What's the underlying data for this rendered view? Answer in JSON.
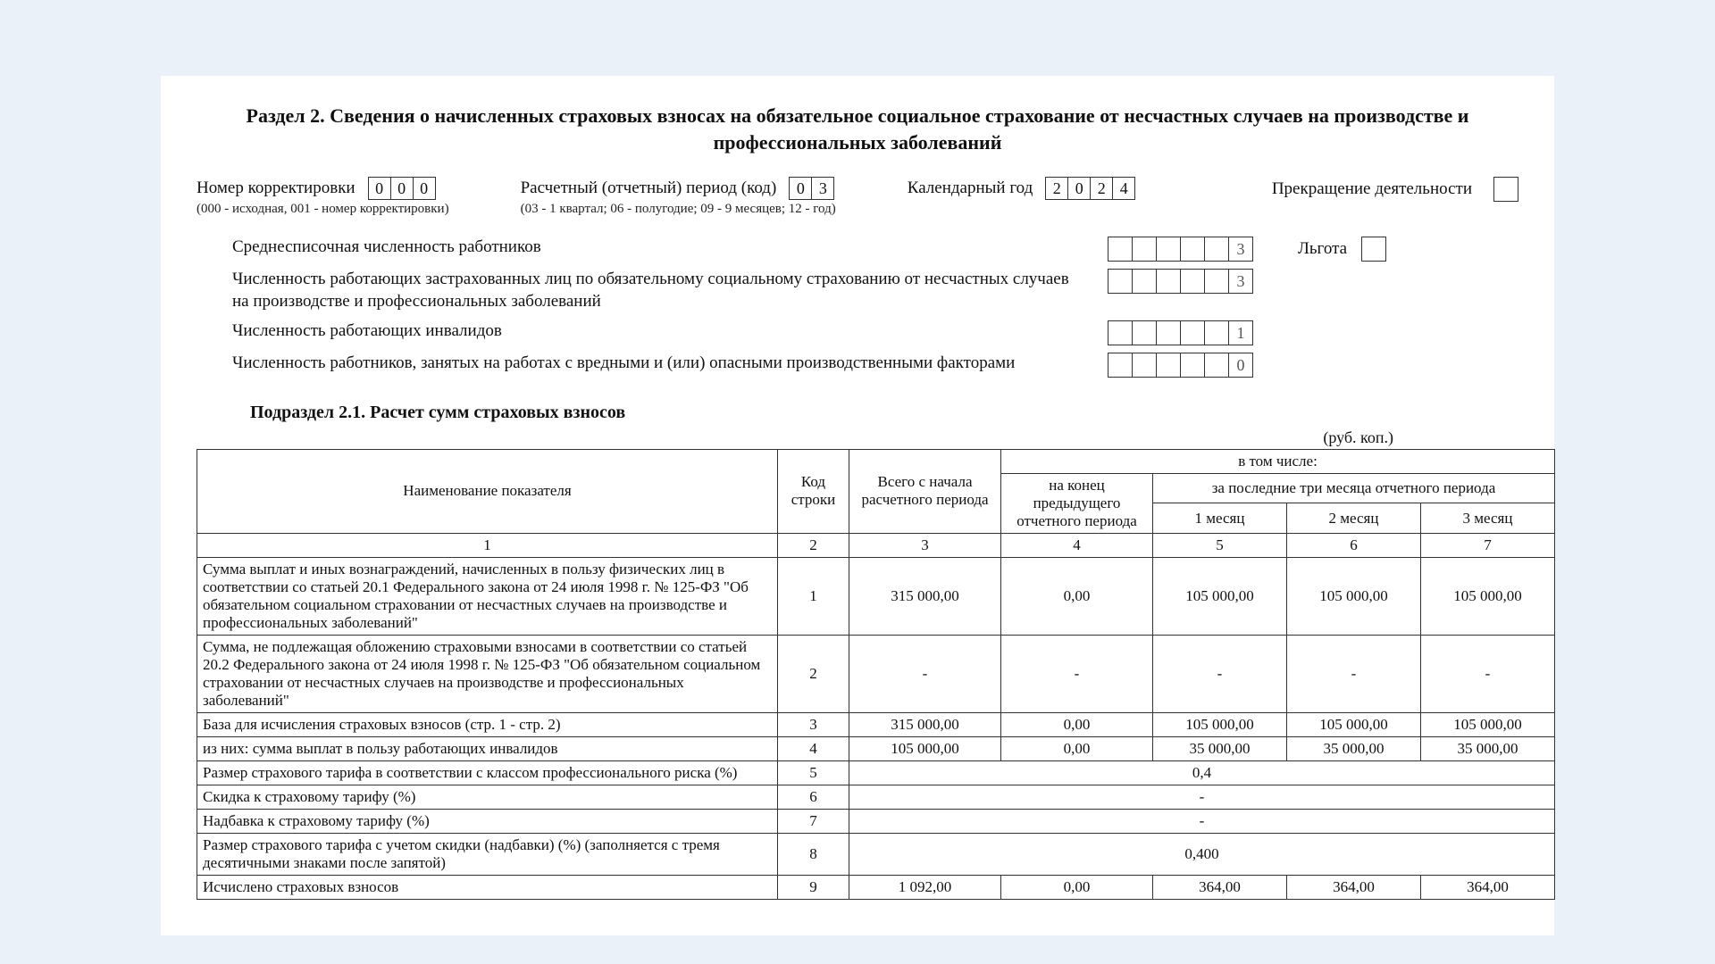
{
  "colors": {
    "page_bg": "#eaf1f9",
    "paper_bg": "#ffffff",
    "text": "#111111",
    "border": "#333333",
    "muted": "#555555"
  },
  "fonts": {
    "family": "Times New Roman",
    "title_size_pt": 16,
    "body_size_pt": 14,
    "table_size_pt": 12
  },
  "title": "Раздел 2. Сведения о начисленных страховых взносах на обязательное социальное страхование от несчастных случаев на производстве и профессиональных заболеваний",
  "header": {
    "correction": {
      "label": "Номер корректировки",
      "digits": [
        "0",
        "0",
        "0"
      ],
      "note": "(000 - исходная, 001 - номер корректировки)"
    },
    "period": {
      "label": "Расчетный (отчетный) период (код)",
      "digits": [
        "0",
        "3"
      ],
      "note": "(03 - 1 квартал; 06 - полугодие; 09 - 9 месяцев; 12 - год)"
    },
    "year": {
      "label": "Календарный год",
      "digits": [
        "2",
        "0",
        "2",
        "4"
      ]
    },
    "termination_label": "Прекращение деятельности",
    "benefit_label": "Льгота"
  },
  "stats": {
    "rows": [
      {
        "label": "Среднесписочная численность работников",
        "digits": [
          "",
          "",
          "",
          "",
          "",
          "3"
        ],
        "show_benefit": true
      },
      {
        "label": "Численность работающих застрахованных лиц по обязательному социальному страхованию от несчастных случаев на производстве и профессиональных заболеваний",
        "digits": [
          "",
          "",
          "",
          "",
          "",
          "3"
        ]
      },
      {
        "label": "Численность работающих инвалидов",
        "digits": [
          "",
          "",
          "",
          "",
          "",
          "1"
        ]
      },
      {
        "label": "Численность работников, занятых на работах с вредными и (или) опасными производственными факторами",
        "digits": [
          "",
          "",
          "",
          "",
          "",
          "0"
        ]
      }
    ]
  },
  "subsection_title": "Подраздел 2.1. Расчет сумм страховых взносов",
  "rub_note": "(руб. коп.)",
  "table": {
    "headers": {
      "name": "Наименование показателя",
      "code": "Код строки",
      "total": "Всего с начала расчетного периода",
      "including": "в том числе:",
      "prev_end": "на конец предыдущего отчетного периода",
      "last3": "за последние три месяца отчетного периода",
      "m1": "1 месяц",
      "m2": "2 месяц",
      "m3": "3 месяц"
    },
    "col_numbers": [
      "1",
      "2",
      "3",
      "4",
      "5",
      "6",
      "7"
    ],
    "rows": [
      {
        "name": "Сумма выплат и иных вознаграждений, начисленных в пользу физических лиц в соответствии со статьей 20.1 Федерального закона от 24 июля 1998 г. № 125-ФЗ \"Об обязательном социальном страховании от несчастных случаев на производстве и профессиональных заболеваний\"",
        "code": "1",
        "cells": [
          "315 000,00",
          "0,00",
          "105 000,00",
          "105 000,00",
          "105 000,00"
        ]
      },
      {
        "name": "Сумма, не подлежащая обложению страховыми взносами в соответствии со статьей 20.2 Федерального закона от 24 июля 1998 г. № 125-ФЗ \"Об обязательном социальном страховании от несчастных случаев на производстве и профессиональных заболеваний\"",
        "code": "2",
        "cells": [
          "-",
          "-",
          "-",
          "-",
          "-"
        ]
      },
      {
        "name": "База для исчисления страховых взносов (стр. 1 - стр. 2)",
        "code": "3",
        "cells": [
          "315 000,00",
          "0,00",
          "105 000,00",
          "105 000,00",
          "105 000,00"
        ]
      },
      {
        "name": "из них: сумма выплат в пользу работающих инвалидов",
        "code": "4",
        "cells": [
          "105 000,00",
          "0,00",
          "35 000,00",
          "35 000,00",
          "35 000,00"
        ]
      },
      {
        "name": "Размер страхового тарифа в соответствии с классом профессионального риска (%)",
        "code": "5",
        "merged": "0,4"
      },
      {
        "name": "Скидка к страховому тарифу (%)",
        "code": "6",
        "merged": "-"
      },
      {
        "name": "Надбавка к страховому тарифу (%)",
        "code": "7",
        "merged": "-"
      },
      {
        "name": "Размер страхового тарифа с учетом скидки (надбавки) (%) (заполняется с тремя десятичными знаками после запятой)",
        "code": "8",
        "merged": "0,400"
      },
      {
        "name": "Исчислено страховых взносов",
        "code": "9",
        "cells": [
          "1 092,00",
          "0,00",
          "364,00",
          "364,00",
          "364,00"
        ]
      }
    ]
  }
}
